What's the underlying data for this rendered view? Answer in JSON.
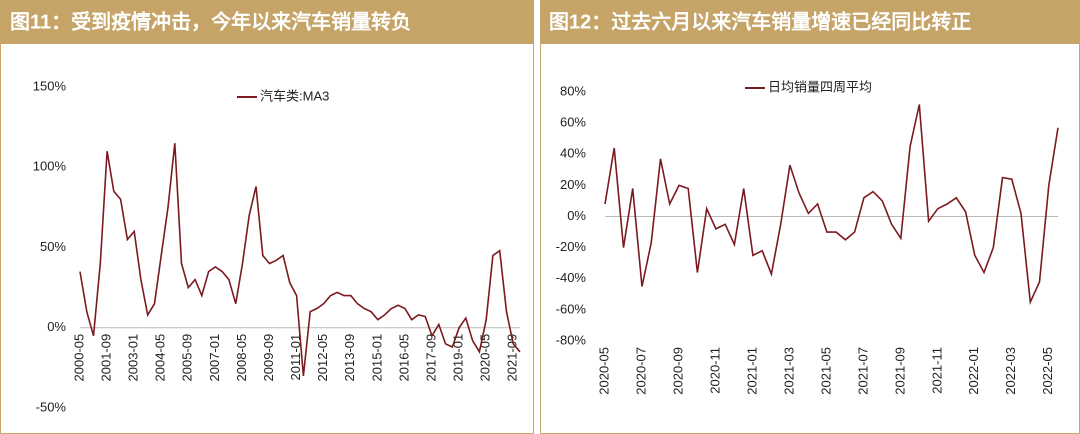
{
  "chart_data": [
    {
      "type": "line",
      "title": "图11：受到疫情冲击，今年以来汽车销量转负",
      "categories": [
        "2000-05",
        null,
        null,
        null,
        "2001-09",
        null,
        null,
        null,
        "2003-01",
        null,
        null,
        null,
        "2004-05",
        null,
        null,
        null,
        "2005-09",
        null,
        null,
        null,
        "2007-01",
        null,
        null,
        null,
        "2008-05",
        null,
        null,
        null,
        "2009-09",
        null,
        null,
        null,
        "2011-01",
        null,
        null,
        null,
        "2012-05",
        null,
        null,
        null,
        "2013-09",
        null,
        null,
        null,
        "2015-01",
        null,
        null,
        null,
        "2016-05",
        null,
        null,
        null,
        "2017-09",
        null,
        null,
        null,
        "2019-01",
        null,
        null,
        null,
        "2020-05",
        null,
        null,
        null,
        "2021-09",
        null
      ],
      "series": [
        {
          "name": "汽车类:MA3",
          "color": "#7b1a1f",
          "values": [
            35,
            10,
            -5,
            40,
            110,
            85,
            80,
            55,
            60,
            30,
            8,
            15,
            45,
            75,
            115,
            40,
            25,
            30,
            20,
            35,
            38,
            35,
            30,
            15,
            40,
            70,
            88,
            45,
            40,
            42,
            45,
            28,
            20,
            -30,
            10,
            12,
            15,
            20,
            22,
            20,
            20,
            15,
            12,
            10,
            5,
            8,
            12,
            14,
            12,
            5,
            8,
            7,
            -5,
            2,
            -10,
            -12,
            0,
            6,
            -8,
            -15,
            5,
            45,
            48,
            10,
            -10,
            -15
          ]
        }
      ],
      "ylim": [
        -50,
        150
      ],
      "yticks": [
        {
          "value": -50,
          "label": "-50%"
        },
        {
          "value": 0,
          "label": "0%"
        },
        {
          "value": 50,
          "label": "50%"
        },
        {
          "value": 100,
          "label": "100%"
        },
        {
          "value": 150,
          "label": "150%"
        }
      ],
      "legend": "top"
    },
    {
      "type": "line",
      "title": "图12：过去六月以来汽车销量增速已经同比转正",
      "categories": [
        "2020-05",
        null,
        null,
        null,
        "2020-07",
        null,
        null,
        null,
        "2020-09",
        null,
        null,
        null,
        "2020-11",
        null,
        null,
        null,
        "2021-01",
        null,
        null,
        null,
        "2021-03",
        null,
        null,
        null,
        "2021-05",
        null,
        null,
        null,
        "2021-07",
        null,
        null,
        null,
        "2021-09",
        null,
        null,
        null,
        "2021-11",
        null,
        null,
        null,
        "2022-01",
        null,
        null,
        null,
        "2022-03",
        null,
        null,
        null,
        "2022-05",
        null
      ],
      "series": [
        {
          "name": "日均销量四周平均",
          "color": "#7b1a1f",
          "values": [
            8,
            44,
            -20,
            18,
            -45,
            -17,
            37,
            8,
            20,
            18,
            -36,
            5,
            -8,
            -5,
            -18,
            18,
            -25,
            -22,
            -37,
            -5,
            33,
            15,
            2,
            8,
            -10,
            -10,
            -15,
            -10,
            12,
            16,
            10,
            -5,
            -14,
            45,
            72,
            -3,
            5,
            8,
            12,
            3,
            -25,
            -36,
            -20,
            25,
            24,
            2,
            -55,
            -42,
            20,
            57
          ]
        }
      ],
      "ylim": [
        -80,
        80
      ],
      "yticks": [
        {
          "value": -80,
          "label": "-80%"
        },
        {
          "value": -60,
          "label": "-60%"
        },
        {
          "value": -40,
          "label": "-40%"
        },
        {
          "value": -20,
          "label": "-20%"
        },
        {
          "value": 0,
          "label": "0%"
        },
        {
          "value": 20,
          "label": "20%"
        },
        {
          "value": 40,
          "label": "40%"
        },
        {
          "value": 60,
          "label": "60%"
        },
        {
          "value": 80,
          "label": "80%"
        }
      ],
      "legend": "top"
    }
  ]
}
